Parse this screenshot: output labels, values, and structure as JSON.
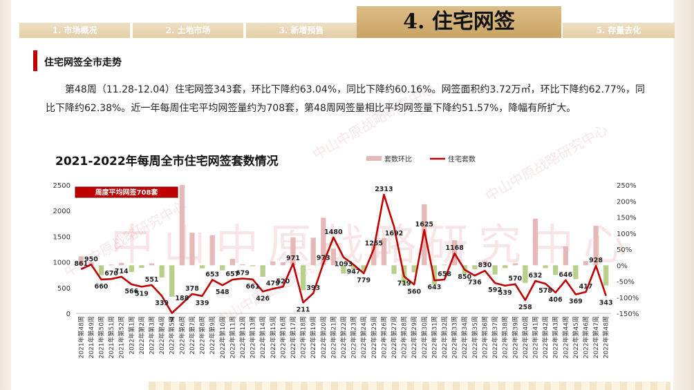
{
  "nav": {
    "tabs": [
      "1. 市场概况",
      "2. 土地市场",
      "3. 新增预售",
      "4. 住宅网签",
      "5. 存量去化"
    ]
  },
  "section": {
    "title": "住宅网签全市走势",
    "paragraph": "第48周（11.28-12.04）住宅网签343套，环比下降约63.04%，同比下降约60.16%。网签面积约3.72万㎡，环比下降约62.77%，同比下降约62.38%。近一年每周住宅平均网签量约为708套，第48周网签量相比平均网签量下降约51.57%，降幅有所扩大。"
  },
  "watermark": "中山中原战略研究中心",
  "colors": {
    "line": "#c00000",
    "bar_pos": "#e6b8b8",
    "bar_neg": "#b8d08a",
    "accent": "#c00000"
  },
  "chart_data": {
    "type": "bar+line",
    "title": "2021-2022年每周全市住宅网签套数情况",
    "legend": [
      "套数环比",
      "住宅套数"
    ],
    "legend_position": "top-right",
    "annotation": "周度平均网签708套",
    "y_left": {
      "min": 0,
      "max": 2500,
      "ticks": [
        "0",
        "500",
        "1000",
        "1500",
        "2000",
        "2500"
      ]
    },
    "y_right": {
      "min": -150,
      "max": 250,
      "ticks": [
        "-150%",
        "-100%",
        "-50%",
        "0%",
        "50%",
        "100%",
        "150%",
        "200%",
        "250%"
      ]
    },
    "categories": [
      "2021年第48周",
      "2021年第49周",
      "2021年第50周",
      "2021年第51周",
      "2021年第52周",
      "2022年第1周",
      "2022年第2周",
      "2022年第3周",
      "2022年第4周",
      "2022年第5周",
      "2022年第6周",
      "2022年第7周",
      "2022年第8周",
      "2022年第9周",
      "2022年第10周",
      "2022年第11周",
      "2022年第12周",
      "2022年第13周",
      "2022年第14周",
      "2022年第15周",
      "2022年第16周",
      "2022年第17周",
      "2022年第18周",
      "2022年第19周",
      "2022年第20周",
      "2022年第21周",
      "2022年第22周",
      "2022年第23周",
      "2022年第24周",
      "2022年第25周",
      "2022年第26周",
      "2022年第27周",
      "2022年第28周",
      "2022年第29周",
      "2022年第30周",
      "2022年第31周",
      "2022年第32周",
      "2022年第33周",
      "2022年第34周",
      "2022年第35周",
      "2022年第36周",
      "2022年第37周",
      "2022年第38周",
      "2022年第39周",
      "2022年第40周",
      "2022年第41周",
      "2022年第42周",
      "2022年第43周",
      "2022年第44周",
      "2022年第45周",
      "2022年第46周",
      "2022年第47周",
      "2022年第48周"
    ],
    "series": [
      {
        "name": "住宅套数",
        "type": "line",
        "values": [
          861,
          950,
          660,
          670,
          714,
          566,
          519,
          551,
          339,
          7,
          188,
          378,
          339,
          653,
          548,
          657,
          679,
          661,
          426,
          479,
          520,
          971,
          211,
          393,
          973,
          1480,
          1093,
          947,
          779,
          1255,
          2313,
          1692,
          719,
          560,
          1625,
          643,
          658,
          1168,
          850,
          736,
          830,
          592,
          539,
          570,
          258,
          632,
          578,
          406,
          646,
          369,
          417,
          928,
          343
        ],
        "labels": [
          "861",
          "950",
          "660",
          "670",
          "714",
          "566",
          "519",
          "551",
          "339",
          "7",
          "188",
          "378",
          "339",
          "653",
          "548",
          "657",
          "679",
          "661",
          "426",
          "479",
          "520",
          "971",
          "211",
          "393",
          "973",
          "1480",
          "1093",
          "947",
          "779",
          "1255",
          "2313",
          "1692",
          "719",
          "560",
          "1625",
          "643",
          "658",
          "1168",
          "850",
          "736",
          "830",
          "592",
          "539",
          "570",
          "258",
          "632",
          "578",
          "406",
          "646",
          "369",
          "417",
          "928",
          "343"
        ]
      },
      {
        "name": "套数环比",
        "type": "bar",
        "values": [
          28,
          10,
          -31,
          2,
          7,
          -21,
          -8,
          6,
          -38,
          -98,
          2586,
          101,
          -10,
          93,
          -16,
          20,
          3,
          -3,
          -36,
          12,
          9,
          87,
          -78,
          86,
          148,
          52,
          -26,
          -13,
          -18,
          61,
          84,
          -27,
          -58,
          -22,
          190,
          -60,
          2,
          78,
          -27,
          -13,
          13,
          -29,
          -9,
          6,
          -55,
          145,
          -9,
          -30,
          59,
          -43,
          13,
          123,
          -63
        ]
      }
    ]
  }
}
